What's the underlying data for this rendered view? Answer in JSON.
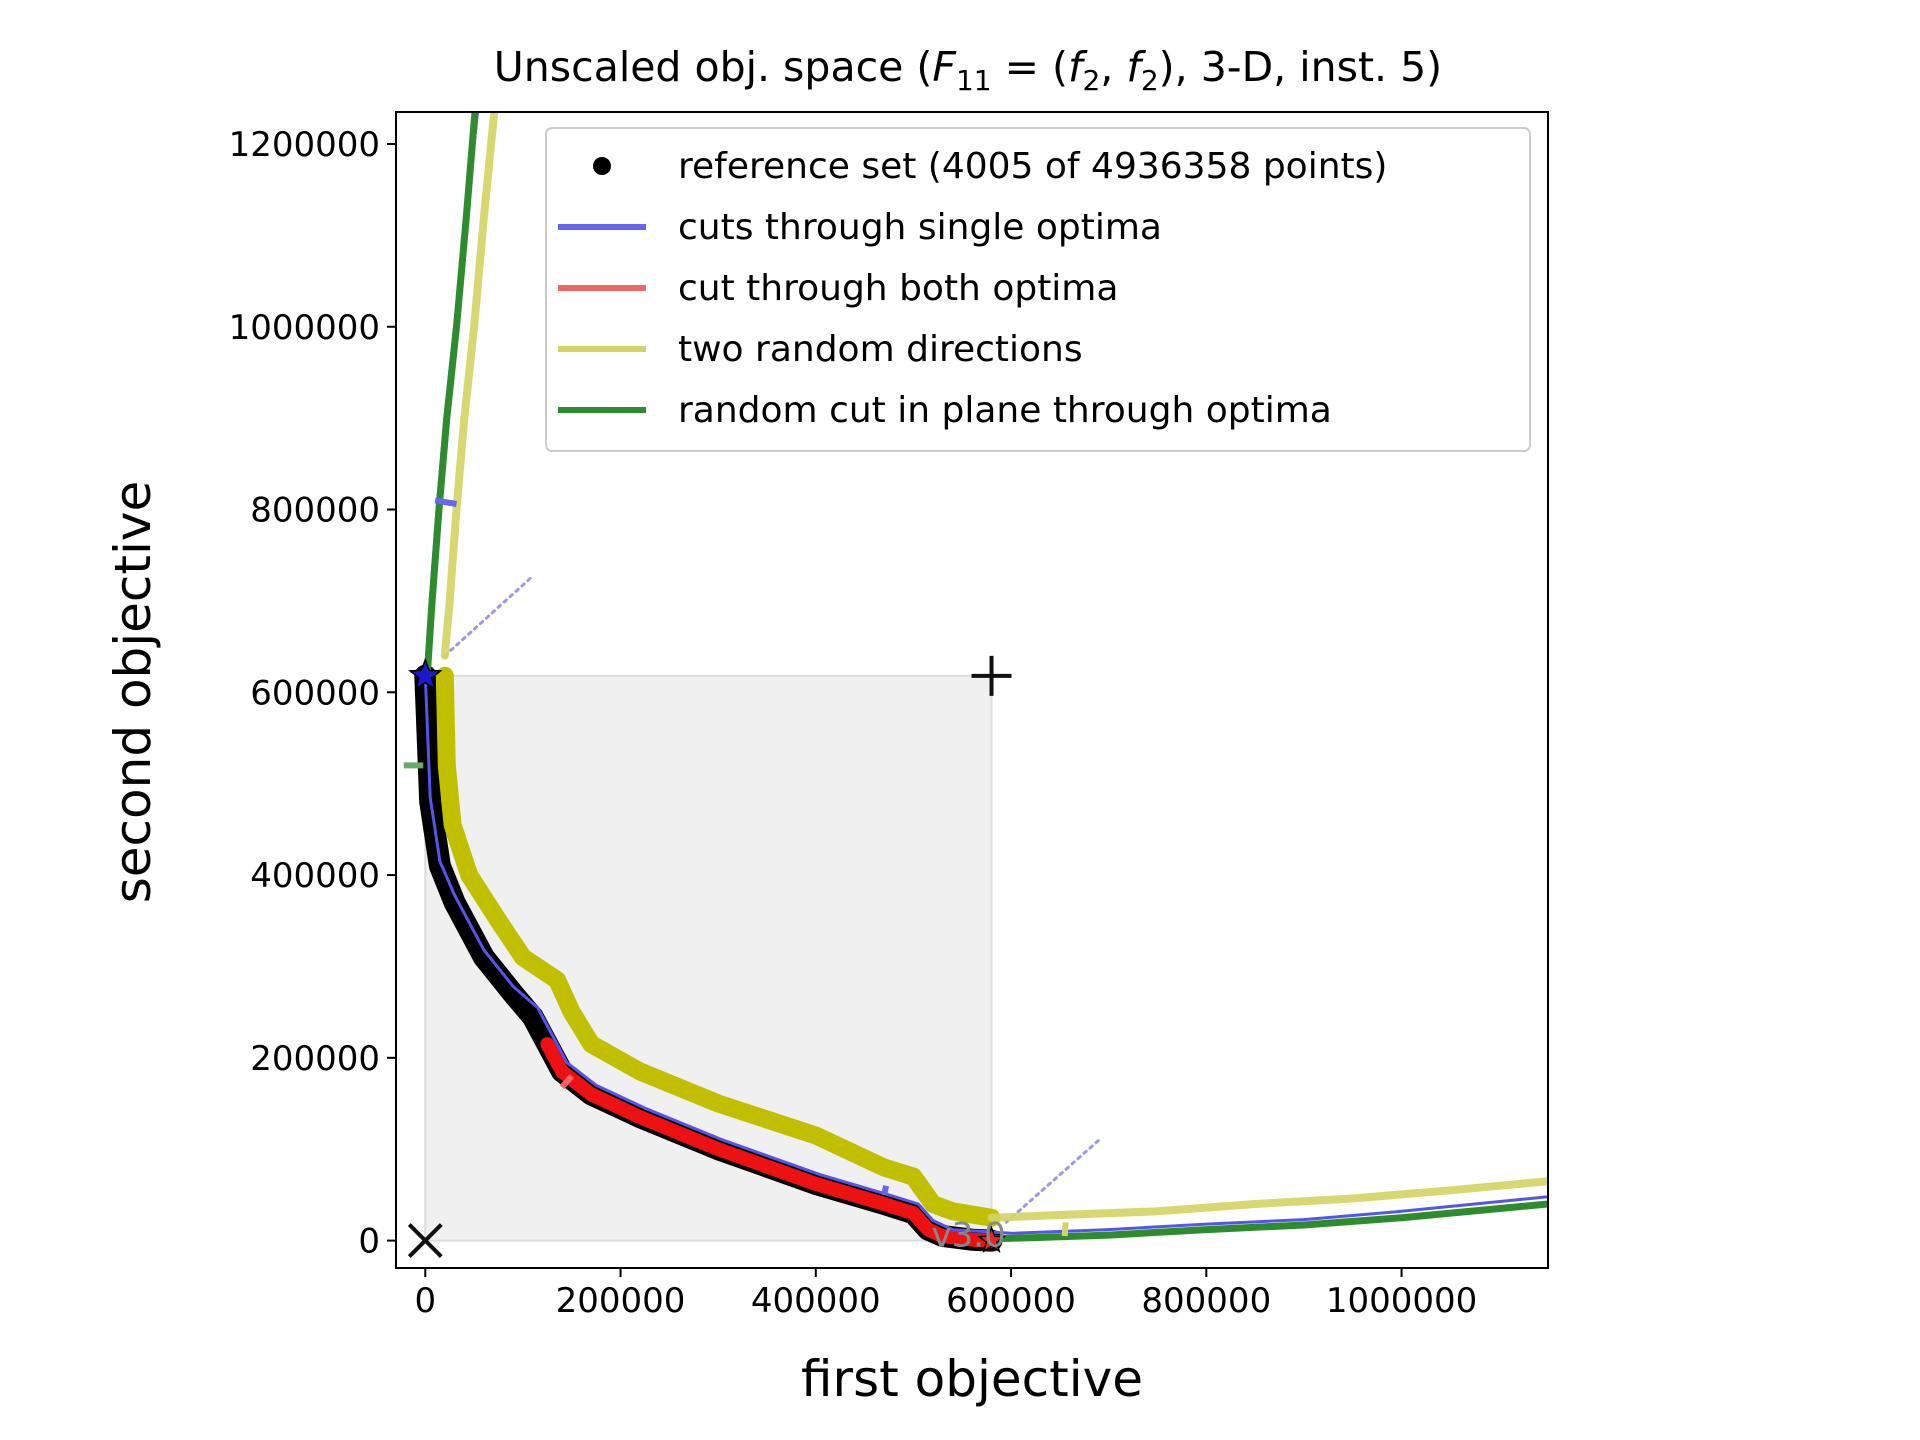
{
  "chart_data": {
    "type": "line",
    "title": "Unscaled obj. space (F11 = (f2, f2), 3-D, inst. 5)",
    "title_parts": {
      "prefix": "Unscaled obj. space (",
      "F": "F",
      "F_sub": "11",
      "eq": " = (",
      "f1": "f",
      "f1_sub": "2",
      "comma": ", ",
      "f2": "f",
      "f2_sub": "2",
      "suffix": "), 3-D, inst. 5)"
    },
    "xlabel": "first objective",
    "ylabel": "second objective",
    "xlim": [
      -30000,
      1150000
    ],
    "ylim": [
      -30000,
      1235000
    ],
    "xticks": [
      0,
      200000,
      400000,
      600000,
      800000,
      1000000
    ],
    "xtick_labels": [
      "0",
      "200000",
      "400000",
      "600000",
      "800000",
      "1000000"
    ],
    "yticks": [
      0,
      200000,
      400000,
      600000,
      800000,
      1000000,
      1200000
    ],
    "ytick_labels": [
      "0",
      "200000",
      "400000",
      "600000",
      "800000",
      "1000000",
      "1200000"
    ],
    "grid": false,
    "legend": {
      "placement": "top-right",
      "entries": [
        {
          "label": "reference set (4005 of 4936358 points)",
          "marker": "dot",
          "color": "#000000"
        },
        {
          "label": "cuts through single optima",
          "marker": "line",
          "color": "#6666ee"
        },
        {
          "label": "cut through both optima",
          "marker": "line",
          "color": "#ee6666"
        },
        {
          "label": "two random directions",
          "marker": "line",
          "color": "#d4d464"
        },
        {
          "label": "random cut in plane through optima",
          "marker": "line",
          "color": "#2e8b2e"
        }
      ]
    },
    "dominated_region": {
      "x": [
        0,
        580000
      ],
      "y": [
        0,
        618000
      ],
      "color": "#f0f0f0"
    },
    "ideal_point": {
      "x": 0,
      "y": 0,
      "marker": "x"
    },
    "nadir_point": {
      "x": 580000,
      "y": 618000,
      "marker": "+"
    },
    "optimum_1": {
      "x": 0,
      "y": 618000,
      "color": "#1a1acc"
    },
    "optimum_2": {
      "x": 580000,
      "y": 0,
      "color": "#ee2222"
    },
    "version_text": "v3.0",
    "series": [
      {
        "role": "reference-set",
        "color": "#000000",
        "x": [
          0,
          5000,
          15000,
          30000,
          60000,
          90000,
          110000,
          125000,
          140000,
          170000,
          220000,
          300000,
          400000,
          470000,
          500000,
          515000,
          530000,
          560000,
          580000
        ],
        "y": [
          618000,
          480000,
          410000,
          370000,
          310000,
          270000,
          245000,
          215000,
          185000,
          160000,
          135000,
          100000,
          62000,
          40000,
          30000,
          12000,
          5000,
          1000,
          0
        ]
      },
      {
        "role": "both-optima-cut",
        "color": "#ee1111",
        "x": [
          125000,
          140000,
          170000,
          220000,
          300000,
          400000,
          470000,
          500000,
          515000,
          530000,
          560000,
          580000
        ],
        "y": [
          215000,
          185000,
          160000,
          135000,
          100000,
          62000,
          40000,
          30000,
          12000,
          5000,
          1000,
          0
        ]
      },
      {
        "role": "single-optimum-cut-1",
        "color": "#5555ee",
        "x": [
          0,
          5000,
          15000,
          30000,
          60000,
          90000,
          115000,
          130000,
          145000,
          175000,
          225000,
          305000,
          405000,
          475000,
          505000,
          520000,
          540000,
          600000,
          700000,
          800000,
          900000,
          1000000,
          1150000
        ],
        "y": [
          618000,
          485000,
          415000,
          378000,
          318000,
          278000,
          255000,
          225000,
          195000,
          170000,
          145000,
          110000,
          72000,
          50000,
          40000,
          22000,
          12000,
          8000,
          12000,
          18000,
          23000,
          32000,
          48000
        ]
      },
      {
        "role": "single-optimum-cut-2",
        "color": "#5555ee",
        "x": [
          0,
          5000,
          12000,
          20000,
          30000,
          45000,
          55000
        ],
        "y": [
          618000,
          700000,
          800000,
          900000,
          1000000,
          1150000,
          1250000
        ]
      },
      {
        "role": "random-plane-cut",
        "color": "#2e8b2e",
        "x": [
          580000,
          620000,
          700000,
          800000,
          900000,
          1000000,
          1150000
        ],
        "y": [
          2000,
          3000,
          6000,
          12000,
          17000,
          25000,
          40000
        ]
      },
      {
        "role": "random-plane-cut",
        "color": "#2e8b2e",
        "x": [
          2000,
          7000,
          14000,
          22000,
          32000,
          42000,
          52000
        ],
        "y": [
          618000,
          700000,
          800000,
          900000,
          1000000,
          1120000,
          1250000
        ]
      },
      {
        "role": "random-directions-1",
        "color": "#c0c000",
        "x": [
          20000,
          22000,
          28000,
          45000,
          75000,
          100000,
          135000,
          150000,
          170000,
          220000,
          300000,
          400000,
          470000,
          500000,
          520000,
          540000,
          580000
        ],
        "y": [
          618000,
          520000,
          455000,
          400000,
          350000,
          310000,
          285000,
          250000,
          215000,
          185000,
          150000,
          115000,
          80000,
          70000,
          40000,
          32000,
          25000
        ]
      },
      {
        "role": "random-directions-2",
        "color": "#d4d464",
        "x": [
          20000,
          25000,
          32000,
          40000,
          50000,
          60000,
          72000
        ],
        "y": [
          640000,
          700000,
          800000,
          900000,
          1000000,
          1120000,
          1250000
        ]
      },
      {
        "role": "random-directions-3",
        "color": "#d4d464",
        "x": [
          580000,
          650000,
          750000,
          850000,
          950000,
          1050000,
          1150000
        ],
        "y": [
          25000,
          28000,
          32000,
          40000,
          46000,
          55000,
          65000
        ]
      }
    ],
    "short_segments": [
      {
        "color": "#6666ee",
        "x": [
          10000,
          32000
        ],
        "y": [
          810000,
          806000
        ]
      },
      {
        "color": "#66aa66",
        "x": [
          -22000,
          -2000
        ],
        "y": [
          520000,
          520000
        ]
      },
      {
        "color": "#ee6666",
        "x": [
          140000,
          150000
        ],
        "y": [
          168000,
          180000
        ]
      },
      {
        "color": "#6666ee",
        "x": [
          470000,
          472000
        ],
        "y": [
          50000,
          60000
        ]
      },
      {
        "color": "#d4d464",
        "x": [
          655000,
          656000
        ],
        "y": [
          5000,
          20000
        ]
      }
    ],
    "dotted_lines": [
      {
        "color": "#9999ee",
        "x": [
          20000,
          110000
        ],
        "y": [
          640000,
          727000
        ]
      },
      {
        "color": "#9999ee",
        "x": [
          595000,
          690000
        ],
        "y": [
          20000,
          110000
        ]
      }
    ]
  }
}
